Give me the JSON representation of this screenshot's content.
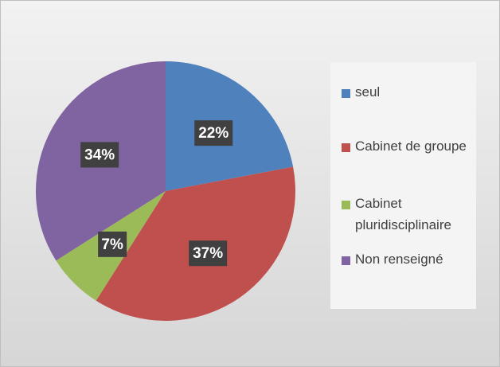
{
  "chart_data": {
    "type": "pie",
    "categories": [
      "seul",
      "Cabinet de groupe",
      "Cabinet pluridisciplinaire",
      "Non renseigné"
    ],
    "values": [
      22,
      37,
      7,
      34
    ],
    "value_labels": [
      "22%",
      "37%",
      "7%",
      "34%"
    ],
    "colors": [
      "#4f81bd",
      "#c0504d",
      "#9bbb59",
      "#8064a2"
    ],
    "legend": "right"
  }
}
